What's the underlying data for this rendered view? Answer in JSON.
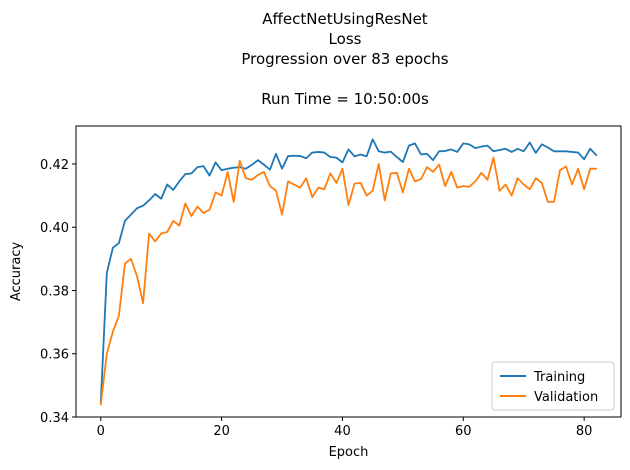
{
  "chart_data": {
    "type": "line",
    "title_lines": [
      "AffectNetUsingResNet",
      "Loss",
      "Progression over 83 epochs",
      "",
      "Run Time = 10:50:00s"
    ],
    "xlabel": "Epoch",
    "ylabel": "Accuracy",
    "xlim": [
      -4.1,
      86.1
    ],
    "ylim": [
      0.34,
      0.432
    ],
    "xticks": [
      0,
      20,
      40,
      60,
      80
    ],
    "xtick_labels": [
      "0",
      "20",
      "40",
      "60",
      "80"
    ],
    "yticks": [
      0.34,
      0.36,
      0.38,
      0.4,
      0.42
    ],
    "ytick_labels": [
      "0.34",
      "0.36",
      "0.38",
      "0.40",
      "0.42"
    ],
    "grid": false,
    "legend_position": "lower-right",
    "x": [
      0,
      1,
      2,
      3,
      4,
      5,
      6,
      7,
      8,
      9,
      10,
      11,
      12,
      13,
      14,
      15,
      16,
      17,
      18,
      19,
      20,
      21,
      22,
      23,
      24,
      25,
      26,
      27,
      28,
      29,
      30,
      31,
      32,
      33,
      34,
      35,
      36,
      37,
      38,
      39,
      40,
      41,
      42,
      43,
      44,
      45,
      46,
      47,
      48,
      49,
      50,
      51,
      52,
      53,
      54,
      55,
      56,
      57,
      58,
      59,
      60,
      61,
      62,
      63,
      64,
      65,
      66,
      67,
      68,
      69,
      70,
      71,
      72,
      73,
      74,
      75,
      76,
      77,
      78,
      79,
      80,
      81,
      82
    ],
    "series": [
      {
        "name": "Training",
        "color": "#1f77b4",
        "values": [
          0.3445,
          0.3855,
          0.3935,
          0.395,
          0.402,
          0.404,
          0.406,
          0.4068,
          0.4085,
          0.4105,
          0.409,
          0.4135,
          0.4118,
          0.4145,
          0.4168,
          0.417,
          0.419,
          0.4193,
          0.4163,
          0.4205,
          0.418,
          0.4185,
          0.4188,
          0.419,
          0.4185,
          0.4197,
          0.4212,
          0.4198,
          0.4182,
          0.4232,
          0.4185,
          0.4225,
          0.4226,
          0.4225,
          0.4218,
          0.4236,
          0.4238,
          0.4236,
          0.4222,
          0.422,
          0.4205,
          0.4246,
          0.4224,
          0.423,
          0.4224,
          0.4278,
          0.424,
          0.4236,
          0.4239,
          0.4222,
          0.4206,
          0.4258,
          0.4265,
          0.423,
          0.4232,
          0.4212,
          0.424,
          0.4241,
          0.4246,
          0.4238,
          0.4265,
          0.4262,
          0.425,
          0.4255,
          0.4258,
          0.424,
          0.4244,
          0.4248,
          0.4238,
          0.4248,
          0.424,
          0.4268,
          0.4235,
          0.4262,
          0.4252,
          0.424,
          0.424,
          0.424,
          0.4238,
          0.4236,
          0.4215,
          0.4248,
          0.4228
        ]
      },
      {
        "name": "Validation",
        "color": "#ff7f0e",
        "values": [
          0.344,
          0.36,
          0.367,
          0.372,
          0.3885,
          0.39,
          0.3845,
          0.376,
          0.398,
          0.3955,
          0.398,
          0.3985,
          0.402,
          0.4005,
          0.4075,
          0.4035,
          0.4065,
          0.4045,
          0.4055,
          0.411,
          0.41,
          0.4175,
          0.408,
          0.421,
          0.4155,
          0.415,
          0.4165,
          0.4175,
          0.413,
          0.4115,
          0.404,
          0.4145,
          0.4135,
          0.4125,
          0.4155,
          0.4095,
          0.4125,
          0.412,
          0.417,
          0.414,
          0.4185,
          0.407,
          0.4138,
          0.414,
          0.41,
          0.4115,
          0.42,
          0.4085,
          0.417,
          0.4172,
          0.411,
          0.4185,
          0.4145,
          0.4152,
          0.419,
          0.4175,
          0.4198,
          0.413,
          0.4175,
          0.4125,
          0.413,
          0.4128,
          0.4145,
          0.4172,
          0.415,
          0.422,
          0.4115,
          0.4135,
          0.41,
          0.4155,
          0.4135,
          0.412,
          0.4155,
          0.414,
          0.408,
          0.408,
          0.418,
          0.4192,
          0.4135,
          0.4185,
          0.412,
          0.4185,
          0.4185
        ]
      }
    ]
  }
}
